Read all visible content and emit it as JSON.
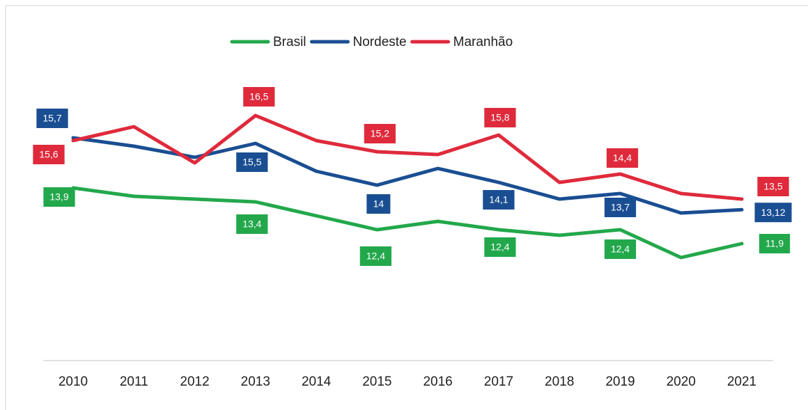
{
  "chart_data": {
    "type": "line",
    "categories": [
      "2010",
      "2011",
      "2012",
      "2013",
      "2014",
      "2015",
      "2016",
      "2017",
      "2018",
      "2019",
      "2020",
      "2021"
    ],
    "ylim": [
      8,
      17
    ],
    "series": [
      {
        "name": "Brasil",
        "color": "#22a84b",
        "values": [
          13.9,
          13.6,
          13.5,
          13.4,
          12.9,
          12.4,
          12.7,
          12.4,
          12.2,
          12.4,
          11.4,
          11.9
        ],
        "value_labels": [
          "13,9",
          null,
          null,
          "13,4",
          null,
          "12,4",
          null,
          "12,4",
          null,
          "12,4",
          null,
          "11,9"
        ]
      },
      {
        "name": "Nordeste",
        "color": "#1a4e92",
        "values": [
          15.7,
          15.4,
          15.0,
          15.5,
          14.5,
          14,
          14.6,
          14.1,
          13.5,
          13.7,
          13.0,
          13.12
        ],
        "value_labels": [
          "15,7",
          null,
          null,
          "15,5",
          null,
          "14",
          null,
          "14,1",
          null,
          "13,7",
          null,
          "13,12"
        ]
      },
      {
        "name": "Maranhão",
        "color": "#df2a3c",
        "values": [
          15.6,
          16.1,
          14.8,
          16.5,
          15.6,
          15.2,
          15.1,
          15.8,
          14.1,
          14.4,
          13.7,
          13.5
        ],
        "value_labels": [
          "15,6",
          null,
          null,
          "16,5",
          null,
          "15,2",
          null,
          "15,8",
          null,
          "14,4",
          null,
          "13,5"
        ]
      }
    ]
  }
}
